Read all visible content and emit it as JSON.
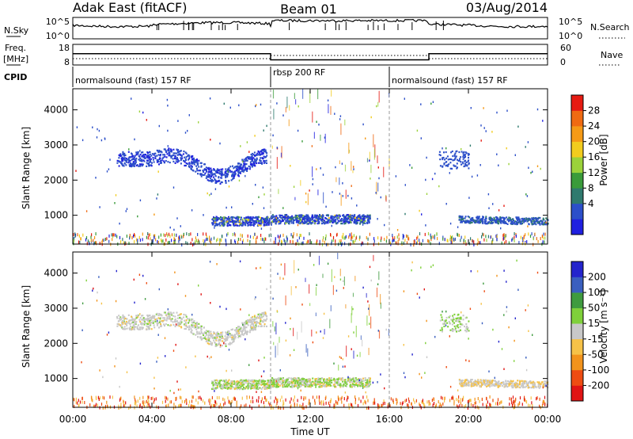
{
  "header": {
    "radar": "Adak East (fitACF)",
    "beam": "Beam 01",
    "date": "03/Aug/2014"
  },
  "summary_panel": {
    "nsky_label": "N.Sky",
    "nsky_ticks": [
      "10^5",
      "10^0"
    ],
    "nsearch_label": "N.Search",
    "nsearch_ticks": [
      "10^5",
      "10^0"
    ],
    "freq_label": "Freq.",
    "freq_unit": "[MHz]",
    "freq_ticks": [
      "18",
      "8"
    ],
    "nave_label": "Nave",
    "nave_ticks": [
      "60",
      "0"
    ],
    "cpid_label": "CPID",
    "cpid_segments": [
      {
        "label": "normalsound (fast) 157 RF",
        "start": "00:00",
        "end": "10:00"
      },
      {
        "label": "rbsp 200 RF",
        "start": "10:00",
        "end": "16:00"
      },
      {
        "label": "normalsound (fast) 157 RF",
        "start": "16:00",
        "end": "24:00"
      }
    ],
    "freq_series": [
      {
        "start": 0,
        "end": 10,
        "mhz": 13.5
      },
      {
        "start": 10,
        "end": 18,
        "mhz": 10.5
      },
      {
        "start": 18,
        "end": 24,
        "mhz": 13.5
      }
    ]
  },
  "colors": {
    "power": [
      "#2020e0",
      "#2c4fc9",
      "#2f7a6e",
      "#3a9b3a",
      "#9bd23a",
      "#f2cc1e",
      "#f59a16",
      "#ef6a12",
      "#e61b12"
    ],
    "velocity": [
      "#e01414",
      "#ee4c12",
      "#f2931c",
      "#f6c248",
      "#c8c8c8",
      "#7fd03a",
      "#3f9b3f",
      "#3a5fbf",
      "#2424cc"
    ]
  },
  "colorbars": {
    "power": {
      "label": "Power [dB]",
      "ticks": [
        "28",
        "24",
        "20",
        "16",
        "12",
        "8",
        "4"
      ]
    },
    "velocity": {
      "label": "Velocity [m s⁻¹]",
      "ticks": [
        "200",
        "100",
        "50",
        "15",
        "-15",
        "-50",
        "-100",
        "-200"
      ]
    }
  },
  "chart_data": [
    {
      "type": "heatmap",
      "title": "Power",
      "xlabel": "Time UT",
      "ylabel": "Slant Range [km]",
      "x_range": [
        "00:00",
        "24:00"
      ],
      "ylim": [
        180,
        4600
      ],
      "x_ticks": [
        "00:00",
        "04:00",
        "08:00",
        "12:00",
        "16:00",
        "20:00",
        "00:00"
      ],
      "y_ticks": [
        1000,
        2000,
        3000,
        4000
      ],
      "colorbar": {
        "label": "Power [dB]",
        "range": [
          0,
          32
        ]
      },
      "regions": [
        {
          "desc": "arc",
          "t_start": 2.2,
          "t_end": 9.8,
          "range_km": 2500,
          "value_db": 6
        },
        {
          "desc": "band",
          "t_start": 7.0,
          "t_end": 15.0,
          "range_km": 850,
          "value_db": 8
        },
        {
          "desc": "band",
          "t_start": 19.5,
          "t_end": 24.0,
          "range_km": 900,
          "value_db": 7
        },
        {
          "desc": "patch",
          "t_start": 18.5,
          "t_end": 20.0,
          "range_km": 2600,
          "value_db": 6
        }
      ]
    },
    {
      "type": "heatmap",
      "title": "Velocity",
      "xlabel": "Time UT",
      "ylabel": "Slant Range [km]",
      "x_range": [
        "00:00",
        "24:00"
      ],
      "ylim": [
        180,
        4600
      ],
      "x_ticks": [
        "00:00",
        "04:00",
        "08:00",
        "12:00",
        "16:00",
        "20:00",
        "00:00"
      ],
      "y_ticks": [
        1000,
        2000,
        3000,
        4000
      ],
      "colorbar": {
        "label": "Velocity [m s⁻¹]",
        "range": [
          -200,
          200
        ]
      },
      "regions": [
        {
          "desc": "arc",
          "t_start": 2.2,
          "t_end": 9.8,
          "range_km": 2500,
          "value_ms": 0
        },
        {
          "desc": "band",
          "t_start": 7.0,
          "t_end": 15.0,
          "range_km": 850,
          "value_ms": 30
        },
        {
          "desc": "band",
          "t_start": 19.5,
          "t_end": 24.0,
          "range_km": 900,
          "value_ms": -5
        }
      ]
    }
  ]
}
